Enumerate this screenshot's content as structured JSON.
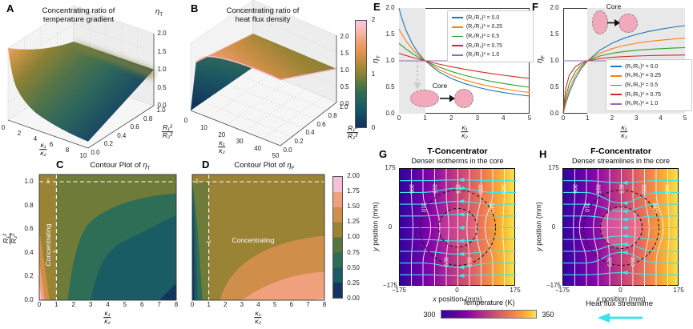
{
  "a": {
    "letter": "A",
    "title_line1": "Concentrating ratio of",
    "title_line2": "temperature gradient",
    "z_label": {
      "base": "η",
      "sub": "T"
    },
    "x_ticks": [
      "0",
      "2",
      "4",
      "6",
      "8",
      "10"
    ],
    "y_ticks": [
      "0.0",
      "0.2",
      "0.4",
      "0.6",
      "0.8",
      "1.0"
    ],
    "z_ticks": [
      "2.0",
      "1.5",
      "1.0",
      "0.5",
      "0.0"
    ],
    "xlabel": {
      "num": "κ₁",
      "den": "κ₂"
    },
    "ylabel": {
      "num": "R₁²",
      "den": "R₂²"
    }
  },
  "b": {
    "letter": "B",
    "title_line1": "Concentrating ratio of",
    "title_line2": "heat flux density",
    "x_ticks": [
      "0",
      "10",
      "20",
      "30",
      "40",
      "50"
    ],
    "y_ticks": [
      "0.0",
      "0.2",
      "0.4",
      "0.6",
      "0.8",
      "1.0"
    ],
    "z_ticks": [
      "2.0",
      "1.5",
      "1.0",
      "0.5",
      "0.0"
    ],
    "xlabel": {
      "num": "κ₁",
      "den": "κ₂"
    },
    "ylabel": {
      "num": "R₁²",
      "den": "R₂²"
    }
  },
  "cb_ab": {
    "ticks": [
      "2",
      "1",
      "0"
    ]
  },
  "c": {
    "letter": "C",
    "title_pre": "Contour Plot of ",
    "title_eta": "η",
    "title_sub": "T",
    "x_ticks": [
      "0",
      "1",
      "2",
      "3",
      "4",
      "5",
      "6",
      "7",
      "8"
    ],
    "y_ticks": [
      "1.0",
      "0.8",
      "0.6",
      "0.4",
      "0.2",
      "0.0"
    ],
    "xlabel": {
      "num": "κ₁",
      "den": "κ₂"
    },
    "ylabel": {
      "num": "R₁²",
      "den": "R₂²"
    },
    "annotation": "Concentrating",
    "guide_label": "1"
  },
  "d": {
    "letter": "D",
    "title_pre": "Contour Plot of ",
    "title_eta": "η",
    "title_sub": "F",
    "x_ticks": [
      "0",
      "1",
      "2",
      "3",
      "4",
      "5",
      "6",
      "7",
      "8"
    ],
    "cb_ticks": [
      "2.00",
      "1.75",
      "1.50",
      "1.25",
      "1.00",
      "0.75",
      "0.50",
      "0.25",
      "0.00"
    ],
    "xlabel": {
      "num": "κ₁",
      "den": "κ₂"
    },
    "annotation": "Concentrating",
    "guide_label": "1"
  },
  "e": {
    "letter": "E",
    "ylabel": {
      "base": "η",
      "sub": "T"
    },
    "y_ticks": [
      "2.0",
      "1.5",
      "1.0",
      "0.5",
      "0.0"
    ],
    "x_ticks": [
      "0",
      "1",
      "2",
      "3",
      "4",
      "5"
    ],
    "xlabel": {
      "num": "κ₁",
      "den": "κ₂"
    },
    "inset_label": "Core"
  },
  "f": {
    "letter": "F",
    "ylabel": {
      "base": "η",
      "sub": "F"
    },
    "y_ticks": [
      "2.0",
      "1.5",
      "1.0",
      "0.5",
      "0.0"
    ],
    "x_ticks": [
      "0",
      "1",
      "2",
      "3",
      "4",
      "5"
    ],
    "xlabel": {
      "num": "κ₁",
      "den": "κ₂"
    },
    "inset_label": "Core"
  },
  "g": {
    "letter": "G",
    "title": "T-Concentrator",
    "subtitle": "Denser isotherms in the core",
    "x_ticks": [
      "−175",
      "0",
      "175"
    ],
    "y_ticks": [
      "175",
      "0",
      "−175"
    ],
    "xlabel_var": "x",
    "xlabel_rest": " position (mm)",
    "ylabel_var": "y",
    "ylabel_rest": " position (mm)",
    "isotherm_labels": [
      "305",
      "310",
      "315",
      "320",
      "325",
      "330",
      "335",
      "340",
      "345"
    ]
  },
  "h": {
    "letter": "H",
    "title": "F-Concentrator",
    "subtitle": "Denser streamlines in the core",
    "x_ticks": [
      "−175",
      "0",
      "175"
    ],
    "y_ticks": [
      "175",
      "0",
      "−175"
    ],
    "xlabel_var": "x",
    "xlabel_rest": " position (mm)",
    "ylabel_var": "y",
    "ylabel_rest": " position (mm)",
    "isotherm_labels": [
      "305",
      "310",
      "315",
      "320",
      "325",
      "330",
      "335",
      "340",
      "345"
    ]
  },
  "temp_bar": {
    "label": "Temperature (K)",
    "min": "300",
    "max": "350"
  },
  "flux_legend": {
    "label": "Heat flux streamline"
  },
  "chart_data": [
    {
      "id": "A",
      "type": "surface",
      "title": "Concentrating ratio of temperature gradient",
      "xlabel": "κ₁/κ₂",
      "ylabel": "R₁²/R₂²",
      "zlabel": "η_T",
      "x_range": [
        0,
        10
      ],
      "y_range": [
        0,
        1
      ],
      "z_range": [
        0,
        2
      ],
      "x_ticks": [
        0,
        2,
        4,
        6,
        8,
        10
      ],
      "y_ticks": [
        0,
        0.2,
        0.4,
        0.6,
        0.8,
        1.0
      ],
      "z_ticks": [
        0,
        0.5,
        1,
        1.5,
        2
      ],
      "surface_readings": "η_T=2 at (κ₁/κ₂=0, R₁²/R₂²=0); η_T=1 along R₁²/R₂²=1 and along κ₁/κ₂=1; decays toward ≈0.2 at κ₁/κ₂=10, R₁²/R₂²=0",
      "colorbar_range": [
        0,
        2
      ]
    },
    {
      "id": "B",
      "type": "surface",
      "title": "Concentrating ratio of heat flux density",
      "xlabel": "κ₁/κ₂",
      "ylabel": "R₁²/R₂²",
      "zlabel": "η_F",
      "x_range": [
        0,
        50
      ],
      "y_range": [
        0,
        1
      ],
      "z_range": [
        0,
        2
      ],
      "x_ticks": [
        0,
        10,
        20,
        30,
        40,
        50
      ],
      "y_ticks": [
        0,
        0.2,
        0.4,
        0.6,
        0.8,
        1.0
      ],
      "z_ticks": [
        0,
        0.5,
        1,
        1.5,
        2
      ],
      "surface_readings": "η_F=0 at κ₁/κ₂=0; rises steeply to a plateau: ≈2 along R₁²/R₂²=0 at large κ₁/κ₂, ≈1 along R₁²/R₂²=1",
      "colorbar_range": [
        0,
        2
      ]
    },
    {
      "id": "C",
      "type": "contour",
      "title": "Contour Plot of η_T",
      "xlabel": "κ₁/κ₂",
      "ylabel": "R₁²/R₂²",
      "x_range": [
        0,
        8
      ],
      "y_range": [
        0,
        1
      ],
      "levels": [
        0,
        0.25,
        0.5,
        0.75,
        1.0,
        1.25,
        1.5,
        1.75,
        2.0
      ],
      "guides": {
        "vertical_x": 1,
        "horizontal_y": 1,
        "label": "1"
      },
      "annotation": "Concentrating (region κ₁/κ₂<1, η_T>1)"
    },
    {
      "id": "D",
      "type": "contour",
      "title": "Contour Plot of η_F",
      "xlabel": "κ₁/κ₂",
      "ylabel": "R₁²/R₂²",
      "x_range": [
        0,
        8
      ],
      "y_range": [
        0,
        1
      ],
      "levels": [
        0,
        0.25,
        0.5,
        0.75,
        1.0,
        1.25,
        1.5,
        1.75,
        2.0
      ],
      "colorbar_ticks": [
        2.0,
        1.75,
        1.5,
        1.25,
        1.0,
        0.75,
        0.5,
        0.25,
        0.0
      ],
      "guides": {
        "vertical_x": 1,
        "horizontal_y": 1,
        "label": "1"
      },
      "annotation": "Concentrating (region κ₁/κ₂>1, η_F>1)"
    },
    {
      "id": "E",
      "type": "line",
      "xlabel": "κ₁/κ₂",
      "ylabel": "η_T",
      "x_range": [
        0,
        5
      ],
      "y_range": [
        0,
        2
      ],
      "x_ticks": [
        0,
        1,
        2,
        3,
        4,
        5
      ],
      "y_ticks": [
        0,
        0.5,
        1,
        1.5,
        2
      ],
      "shaded_x_range": [
        0,
        1
      ],
      "legend_position": "upper right",
      "x": [
        0,
        0.1,
        0.25,
        0.5,
        0.75,
        1,
        1.5,
        2,
        2.5,
        3,
        3.5,
        4,
        4.5,
        5
      ],
      "series": [
        {
          "label": "(R₁/R₂)² = 0.0",
          "color": "#1f77b4",
          "y": [
            2,
            1.818,
            1.6,
            1.333,
            1.143,
            1,
            0.8,
            0.667,
            0.571,
            0.5,
            0.444,
            0.4,
            0.364,
            0.333
          ]
        },
        {
          "label": "(R₁/R₂)² = 0.25",
          "color": "#ff7f0e",
          "y": [
            1.6,
            1.509,
            1.391,
            1.231,
            1.103,
            1,
            0.842,
            0.727,
            0.64,
            0.571,
            0.516,
            0.471,
            0.432,
            0.4
          ]
        },
        {
          "label": "(R₁/R₂)² = 0.5",
          "color": "#2ca02c",
          "y": [
            1.333,
            1.29,
            1.231,
            1.143,
            1.067,
            1,
            0.889,
            0.8,
            0.727,
            0.667,
            0.615,
            0.571,
            0.533,
            0.5
          ]
        },
        {
          "label": "(R₁/R₂)² = 0.75",
          "color": "#d62728",
          "y": [
            1.143,
            1.127,
            1.103,
            1.067,
            1.032,
            1,
            0.941,
            0.889,
            0.842,
            0.8,
            0.762,
            0.727,
            0.696,
            0.667
          ]
        },
        {
          "label": "(R₁/R₂)² = 1.0",
          "color": "#9467bd",
          "y": [
            1,
            1,
            1,
            1,
            1,
            1,
            1,
            1,
            1,
            1,
            1,
            1,
            1,
            1
          ]
        }
      ]
    },
    {
      "id": "F",
      "type": "line",
      "xlabel": "κ₁/κ₂",
      "ylabel": "η_F",
      "x_range": [
        0,
        5
      ],
      "y_range": [
        0,
        2
      ],
      "x_ticks": [
        0,
        1,
        2,
        3,
        4,
        5
      ],
      "y_ticks": [
        0,
        0.5,
        1,
        1.5,
        2
      ],
      "shaded_x_range": [
        1,
        5
      ],
      "legend_position": "lower right",
      "x": [
        0,
        0.1,
        0.25,
        0.5,
        0.75,
        1,
        1.5,
        2,
        2.5,
        3,
        3.5,
        4,
        4.5,
        5
      ],
      "series": [
        {
          "label": "(R₁/R₂)² = 0.0",
          "color": "#1f77b4",
          "y": [
            0,
            0.182,
            0.4,
            0.667,
            0.857,
            1,
            1.2,
            1.333,
            1.429,
            1.5,
            1.556,
            1.6,
            1.636,
            1.667
          ]
        },
        {
          "label": "(R₁/R₂)² = 0.25",
          "color": "#ff7f0e",
          "y": [
            0,
            0.229,
            0.471,
            0.727,
            0.889,
            1,
            1.143,
            1.231,
            1.29,
            1.333,
            1.366,
            1.391,
            1.412,
            1.429
          ]
        },
        {
          "label": "(R₁/R₂)² = 0.5",
          "color": "#2ca02c",
          "y": [
            0,
            0.308,
            0.571,
            0.8,
            0.923,
            1,
            1.091,
            1.143,
            1.176,
            1.2,
            1.217,
            1.231,
            1.241,
            1.25
          ]
        },
        {
          "label": "(R₁/R₂)² = 0.75",
          "color": "#d62728",
          "y": [
            0,
            0.471,
            0.727,
            0.889,
            0.96,
            1,
            1.043,
            1.067,
            1.081,
            1.091,
            1.098,
            1.103,
            1.108,
            1.111
          ]
        },
        {
          "label": "(R₁/R₂)² = 1.0",
          "color": "#9467bd",
          "y": [
            1,
            1,
            1,
            1,
            1,
            1,
            1,
            1,
            1,
            1,
            1,
            1,
            1,
            1
          ]
        }
      ]
    },
    {
      "id": "G",
      "type": "heatmap",
      "title": "T-Concentrator",
      "subtitle": "Denser isotherms in the core",
      "xlabel": "x position (mm)",
      "ylabel": "y position (mm)",
      "x_range": [
        -175,
        175
      ],
      "y_range": [
        -175,
        175
      ],
      "isotherm_values_K": [
        305,
        310,
        315,
        320,
        325,
        330,
        335,
        340,
        345
      ],
      "temperature_range_K": [
        300,
        350
      ],
      "features": "vertical white isotherms denser inside dashed core circle; horizontal cyan heat-flux streamlines with left-pointing arrows"
    },
    {
      "id": "H",
      "type": "heatmap",
      "title": "F-Concentrator",
      "subtitle": "Denser streamlines in the core",
      "xlabel": "x position (mm)",
      "ylabel": "y position (mm)",
      "x_range": [
        -175,
        175
      ],
      "y_range": [
        -175,
        175
      ],
      "isotherm_values_K": [
        305,
        310,
        315,
        320,
        325,
        330,
        335,
        340,
        345
      ],
      "temperature_range_K": [
        300,
        350
      ],
      "features": "cyan heat-flux streamlines converge and are denser inside dashed core circle; pink core region"
    }
  ]
}
